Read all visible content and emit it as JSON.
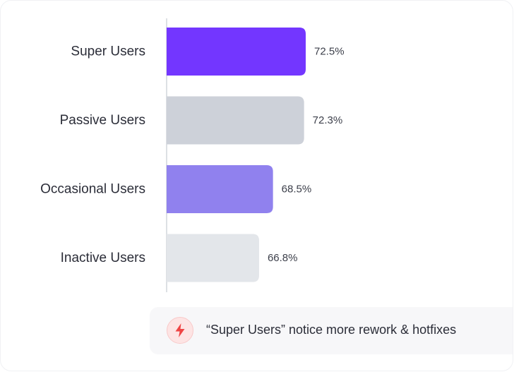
{
  "chart_data": {
    "type": "bar",
    "orientation": "horizontal",
    "categories": [
      "Super Users",
      "Passive Users",
      "Occasional Users",
      "Inactive Users"
    ],
    "values": [
      72.5,
      72.3,
      68.5,
      66.8
    ],
    "value_labels": [
      "72.5%",
      "72.3%",
      "68.5%",
      "66.8%"
    ],
    "colors": [
      "#7336ff",
      "#cdd1d9",
      "#9081ee",
      "#e3e6ea"
    ],
    "xlim": [
      55.5,
      72.5
    ],
    "grid": false,
    "legend": "none"
  },
  "insight": {
    "icon": "lightning-bolt-icon",
    "icon_color": "#ef4444",
    "text": "“Super Users” notice more rework & hotfixes"
  }
}
